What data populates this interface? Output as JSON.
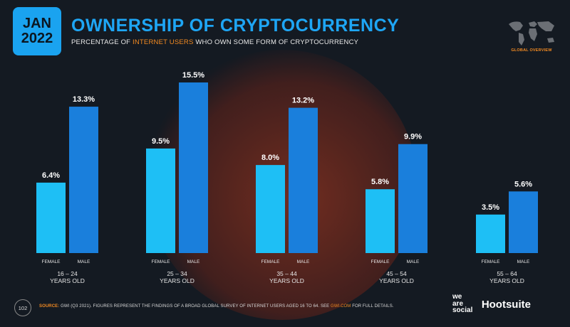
{
  "badge": {
    "month": "JAN",
    "year": "2022"
  },
  "header": {
    "title": "OWNERSHIP OF CRYPTOCURRENCY",
    "subtitle_pre": "PERCENTAGE OF ",
    "subtitle_highlight": "INTERNET USERS",
    "subtitle_post": " WHO OWN SOME FORM OF CRYPTOCURRENCY"
  },
  "map_label": "GLOBAL OVERVIEW",
  "colors": {
    "female": "#1ebff5",
    "male": "#1a7fdc",
    "accent": "#f28a21",
    "title": "#1ea6f5"
  },
  "chart_data": {
    "type": "bar",
    "categories": [
      "16 – 24",
      "25 – 34",
      "35 – 44",
      "45 – 54",
      "55 – 64"
    ],
    "category_sublabel": "YEARS OLD",
    "series": [
      {
        "name": "FEMALE",
        "values": [
          6.4,
          9.5,
          8.0,
          5.8,
          3.5
        ]
      },
      {
        "name": "MALE",
        "values": [
          13.3,
          15.5,
          13.2,
          9.9,
          5.6
        ]
      }
    ],
    "value_suffix": "%",
    "ylim": [
      0,
      15.5
    ],
    "grid": false,
    "title": "OWNERSHIP OF CRYPTOCURRENCY"
  },
  "footer": {
    "page": "102",
    "source_label": "SOURCE:",
    "source_text": " GWI (Q3 2021). FIGURES REPRESENT THE FINDINGS OF A BROAD GLOBAL SURVEY OF INTERNET USERS AGED 16 TO 64. SEE ",
    "source_link": "GWI.COM",
    "source_end": " FOR FULL DETAILS.",
    "brand_we": "we",
    "brand_are": "are",
    "brand_social": "social",
    "brand_hootsuite": "Hootsuite"
  }
}
